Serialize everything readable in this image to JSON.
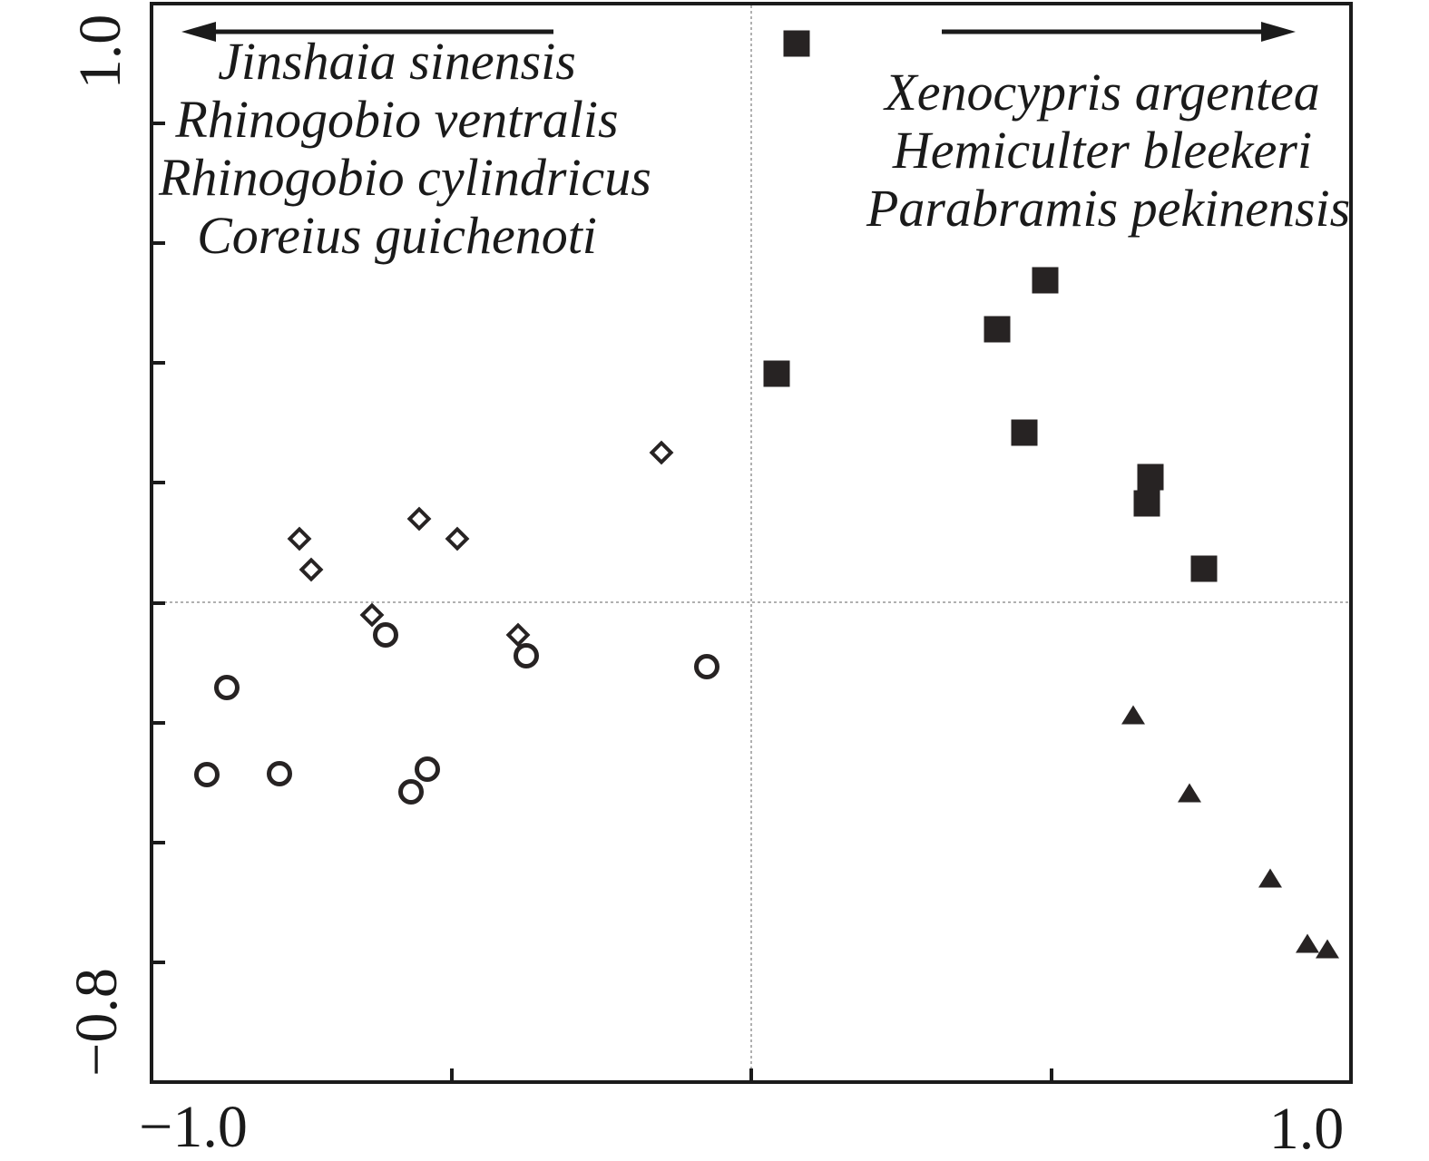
{
  "figure": {
    "colors": {
      "marker": "#272323",
      "frame": "#1b1b1b",
      "dashed_line": "#b0b0b0",
      "text": "#1a1a1a",
      "background": "#ffffff"
    }
  },
  "chart_data": {
    "type": "scatter",
    "title": "",
    "xlabel": "",
    "ylabel": "",
    "xlim": [
      -1.0,
      1.0
    ],
    "ylim": [
      -0.8,
      1.0
    ],
    "x_axis_shown_labels": {
      "min": "−1.0",
      "max": "1.0"
    },
    "y_axis_shown_labels": {
      "min": "−0.8",
      "max": "1.0"
    },
    "x_ticks": [
      -0.5,
      0,
      0.5
    ],
    "y_ticks": [
      0.8,
      0.6,
      0.4,
      0.2,
      0,
      -0.2,
      -0.4,
      -0.6
    ],
    "reference_lines": {
      "vertical_x": 0,
      "horizontal_y": 0,
      "style": "dotted"
    },
    "grid": "off",
    "legend_position": "none",
    "series": [
      {
        "name": "filled-square-group",
        "marker": "filled-square",
        "points": [
          [
            0.076,
            0.934
          ],
          [
            0.49,
            0.539
          ],
          [
            0.41,
            0.456
          ],
          [
            0.042,
            0.382
          ],
          [
            0.456,
            0.284
          ],
          [
            0.666,
            0.21
          ],
          [
            0.659,
            0.166
          ],
          [
            0.755,
            0.057
          ]
        ]
      },
      {
        "name": "open-diamond-group",
        "marker": "open-diamond",
        "points": [
          [
            -0.15,
            0.251
          ],
          [
            -0.553,
            0.14
          ],
          [
            -0.49,
            0.107
          ],
          [
            -0.754,
            0.107
          ],
          [
            -0.733,
            0.056
          ],
          [
            -0.633,
            -0.02
          ],
          [
            -0.389,
            -0.054
          ]
        ]
      },
      {
        "name": "open-circle-group",
        "marker": "open-circle",
        "points": [
          [
            -0.609,
            -0.053
          ],
          [
            -0.375,
            -0.089
          ],
          [
            -0.074,
            -0.106
          ],
          [
            -0.874,
            -0.142
          ],
          [
            -0.907,
            -0.287
          ],
          [
            -0.787,
            -0.285
          ],
          [
            -0.54,
            -0.278
          ],
          [
            -0.568,
            -0.315
          ]
        ]
      },
      {
        "name": "filled-triangle-group",
        "marker": "filled-triangle",
        "points": [
          [
            0.637,
            -0.187
          ],
          [
            0.73,
            -0.317
          ],
          [
            0.866,
            -0.46
          ],
          [
            0.928,
            -0.568
          ],
          [
            0.961,
            -0.578
          ]
        ]
      }
    ],
    "annotations": {
      "left_gradient": {
        "arrow_direction": "left",
        "lines": [
          "Jinshaia sinensis",
          "Rhinogobio ventralis",
          "Rhinogobio cylindricus",
          "Coreius guichenoti"
        ]
      },
      "right_gradient": {
        "arrow_direction": "right",
        "lines": [
          "Xenocypris argentea",
          "Hemiculter bleekeri",
          "Parabramis pekinensis"
        ]
      }
    }
  }
}
